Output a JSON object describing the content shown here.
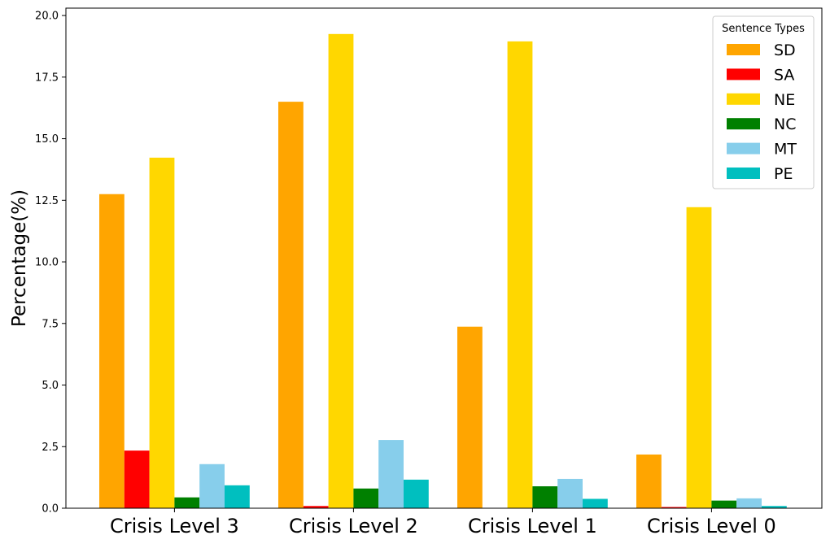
{
  "chart_data": {
    "type": "bar",
    "categories": [
      "Crisis Level 3",
      "Crisis Level 2",
      "Crisis Level 1",
      "Crisis Level 0"
    ],
    "series": [
      {
        "name": "SD",
        "color": "#FFA500",
        "values": [
          12.75,
          16.5,
          7.37,
          2.18
        ]
      },
      {
        "name": "SA",
        "color": "#FF0000",
        "values": [
          2.34,
          0.09,
          0.0,
          0.05
        ]
      },
      {
        "name": "NE",
        "color": "#FFD700",
        "values": [
          14.23,
          19.25,
          18.95,
          12.22
        ]
      },
      {
        "name": "NC",
        "color": "#008000",
        "values": [
          0.44,
          0.8,
          0.89,
          0.31
        ]
      },
      {
        "name": "MT",
        "color": "#87CEEB",
        "values": [
          1.79,
          2.77,
          1.19,
          0.4
        ]
      },
      {
        "name": "PE",
        "color": "#00BFBF",
        "values": [
          0.93,
          1.16,
          0.38,
          0.09
        ]
      }
    ],
    "ylabel": "Percentage(%)",
    "xlabel": "",
    "ylim": [
      0,
      20.3
    ],
    "yticks": [
      "0.0",
      "2.5",
      "5.0",
      "7.5",
      "10.0",
      "12.5",
      "15.0",
      "17.5",
      "20.0"
    ],
    "legend": {
      "title": "Sentence Types",
      "position": "upper right"
    },
    "grid": false
  }
}
